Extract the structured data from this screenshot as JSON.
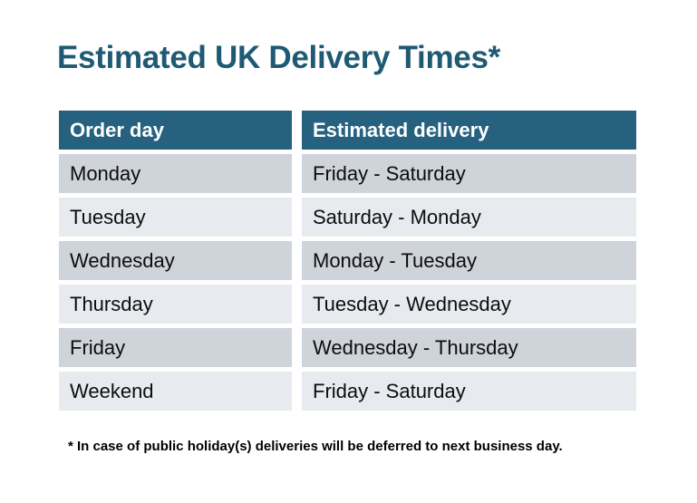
{
  "title": "Estimated UK Delivery Times*",
  "footnote": "* In case of public holiday(s) deliveries will be deferred to next business day.",
  "colors": {
    "background": "#FFFFFF",
    "title_text": "#1F5A74",
    "header_bg": "#26617F",
    "header_text": "#FFFFFF",
    "row_dark_bg": "#CFD3DA",
    "row_light_bg": "#E7EAEE",
    "body_text": "#0D0D0D"
  },
  "chart_data": {
    "type": "table",
    "title": "Estimated UK Delivery Times*",
    "columns": [
      "Order day",
      "Estimated delivery"
    ],
    "rows": [
      [
        "Monday",
        "Friday - Saturday"
      ],
      [
        "Tuesday",
        "Saturday - Monday"
      ],
      [
        "Wednesday",
        "Monday - Tuesday"
      ],
      [
        "Thursday",
        "Tuesday - Wednesday"
      ],
      [
        "Friday",
        "Wednesday - Thursday"
      ],
      [
        "Weekend",
        "Friday - Saturday"
      ]
    ],
    "footnote": "* In case of public holiday(s) deliveries will be deferred to next business day."
  }
}
